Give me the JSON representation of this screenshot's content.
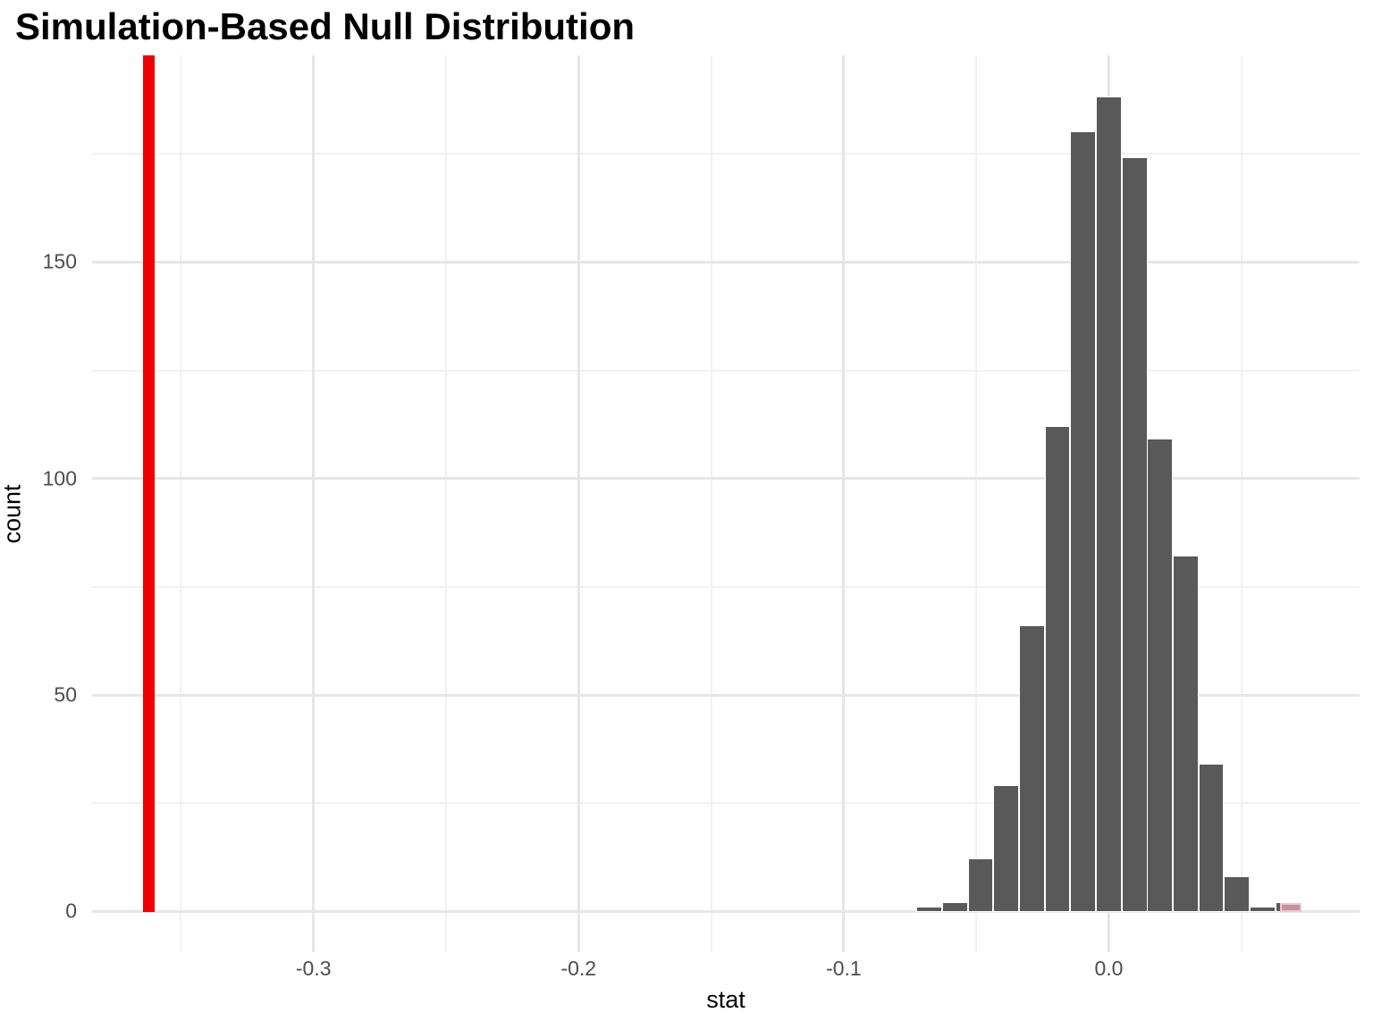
{
  "title": "Simulation-Based Null Distribution",
  "chart_data": {
    "type": "bar",
    "subtype": "histogram",
    "title": "Simulation-Based Null Distribution",
    "xlabel": "stat",
    "ylabel": "count",
    "xlim": [
      -0.3835,
      0.0946
    ],
    "ylim": [
      -9.5,
      197.8
    ],
    "grid": true,
    "legend_position": "none",
    "x_tick_labels": [
      "-0.3",
      "-0.2",
      "-0.1",
      "0.0"
    ],
    "x_tick_values": [
      -0.3,
      -0.2,
      -0.1,
      0.0
    ],
    "y_tick_labels": [
      "0",
      "50",
      "100",
      "150"
    ],
    "y_tick_values": [
      0,
      50,
      100,
      150
    ],
    "x_minor_gridlines": [
      -0.35,
      -0.25,
      -0.15,
      -0.05,
      0.05
    ],
    "y_minor_gridlines": [
      25,
      75,
      125,
      175
    ],
    "binwidth": 0.0097,
    "total_reps": 1000,
    "bins": [
      {
        "stat": -0.0677,
        "count": 1
      },
      {
        "stat": -0.0581,
        "count": 2
      },
      {
        "stat": -0.0484,
        "count": 12
      },
      {
        "stat": -0.0387,
        "count": 29
      },
      {
        "stat": -0.0291,
        "count": 66
      },
      {
        "stat": -0.0194,
        "count": 112
      },
      {
        "stat": -0.0097,
        "count": 180
      },
      {
        "stat": 0.0,
        "count": 188
      },
      {
        "stat": 0.0097,
        "count": 174
      },
      {
        "stat": 0.0193,
        "count": 109
      },
      {
        "stat": 0.029,
        "count": 82
      },
      {
        "stat": 0.0386,
        "count": 34
      },
      {
        "stat": 0.0483,
        "count": 8
      },
      {
        "stat": 0.058,
        "count": 1
      },
      {
        "stat": 0.0676,
        "count": 2
      }
    ],
    "shaded_bin": {
      "stat": 0.0676,
      "count": 2
    },
    "observed_stat": -0.362
  },
  "colors": {
    "bar_fill": "#595959",
    "bar_border": "#ffffff",
    "shaded_fill": "#c0939c",
    "shaded_border": "#f5c4cc",
    "observed_line": "#ee0000",
    "grid_major": "#e6e6e6",
    "grid_minor": "#f1f1f1",
    "tick_text": "#4d4d4d",
    "title_text": "#000000",
    "background": "#ffffff"
  }
}
